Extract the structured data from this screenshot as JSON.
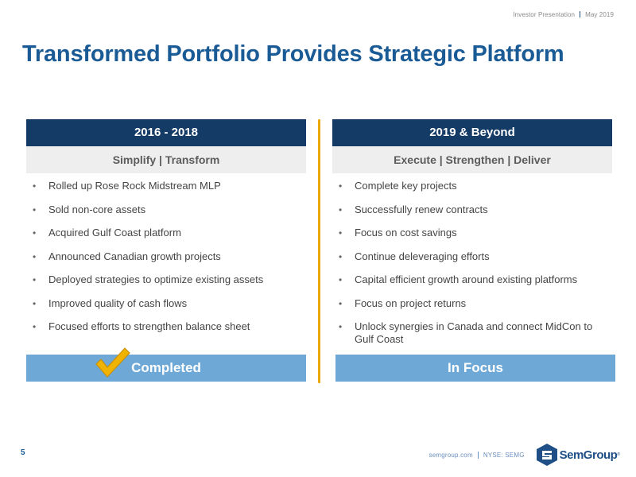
{
  "header": {
    "left": "Investor Presentation",
    "right": "May 2019"
  },
  "title": "Transformed Portfolio Provides Strategic Platform",
  "columns": [
    {
      "heading": "2016 - 2018",
      "subheading": "Simplify | Transform",
      "bullets": [
        "Rolled up Rose Rock Midstream MLP",
        "Sold non-core assets",
        "Acquired Gulf Coast platform",
        "Announced Canadian growth projects",
        "Deployed strategies to optimize existing assets",
        "Improved quality of cash flows",
        "Focused efforts to strengthen balance sheet"
      ],
      "status": "Completed"
    },
    {
      "heading": "2019 & Beyond",
      "subheading": "Execute | Strengthen | Deliver",
      "bullets": [
        "Complete key projects",
        "Successfully renew contracts",
        "Focus on cost savings",
        "Continue deleveraging efforts",
        "Capital efficient growth around existing platforms",
        "Focus on project returns",
        "Unlock synergies in Canada and connect MidCon to Gulf Coast"
      ],
      "status": "In Focus"
    }
  ],
  "bullet_glyph": "•",
  "icons": {
    "status_left": "checkmark-icon",
    "logo": "semgroup-logo-icon"
  },
  "colors": {
    "title": "#1a5b96",
    "column_heading_bg": "#143a66",
    "subheading_bg": "#eeeeee",
    "status_bg": "#6ea8d6",
    "divider": "#e9a90c",
    "checkmark": "#f0b400"
  },
  "page_number": "5",
  "footer": {
    "url": "semgroup.com",
    "ticker": "NYSE: SEMG",
    "logo_text": "SemGroup",
    "logo_reg": "®"
  }
}
